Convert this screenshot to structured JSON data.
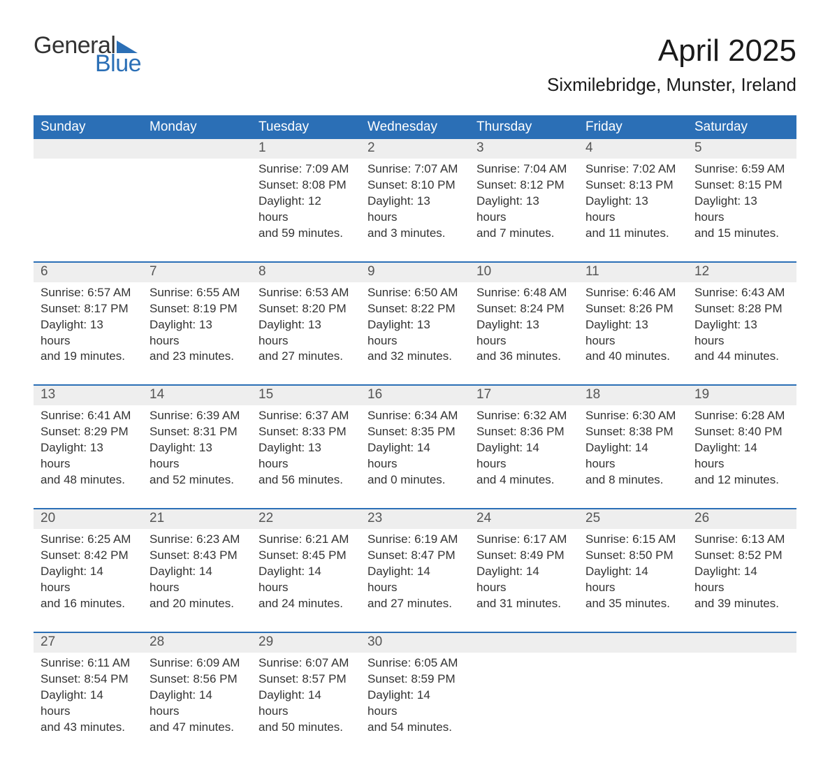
{
  "logo": {
    "text_general": "General",
    "text_blue": "Blue",
    "tri_color": "#2b6fb6"
  },
  "title": "April 2025",
  "location": "Sixmilebridge, Munster, Ireland",
  "columns": [
    "Sunday",
    "Monday",
    "Tuesday",
    "Wednesday",
    "Thursday",
    "Friday",
    "Saturday"
  ],
  "style": {
    "header_bg": "#2b6fb6",
    "header_fg": "#ffffff",
    "daynum_bg": "#eeeeee",
    "daynum_fg": "#555555",
    "body_fg": "#333333",
    "row_sep_color": "#2b6fb6",
    "page_bg": "#ffffff",
    "header_fontsize": 19,
    "daynum_fontsize": 19,
    "body_fontsize": 17,
    "title_fontsize": 44,
    "location_fontsize": 26
  },
  "weeks": [
    [
      null,
      null,
      {
        "n": "1",
        "sunrise": "7:09 AM",
        "sunset": "8:08 PM",
        "day_h": "12",
        "day_m": "59"
      },
      {
        "n": "2",
        "sunrise": "7:07 AM",
        "sunset": "8:10 PM",
        "day_h": "13",
        "day_m": "3"
      },
      {
        "n": "3",
        "sunrise": "7:04 AM",
        "sunset": "8:12 PM",
        "day_h": "13",
        "day_m": "7"
      },
      {
        "n": "4",
        "sunrise": "7:02 AM",
        "sunset": "8:13 PM",
        "day_h": "13",
        "day_m": "11"
      },
      {
        "n": "5",
        "sunrise": "6:59 AM",
        "sunset": "8:15 PM",
        "day_h": "13",
        "day_m": "15"
      }
    ],
    [
      {
        "n": "6",
        "sunrise": "6:57 AM",
        "sunset": "8:17 PM",
        "day_h": "13",
        "day_m": "19"
      },
      {
        "n": "7",
        "sunrise": "6:55 AM",
        "sunset": "8:19 PM",
        "day_h": "13",
        "day_m": "23"
      },
      {
        "n": "8",
        "sunrise": "6:53 AM",
        "sunset": "8:20 PM",
        "day_h": "13",
        "day_m": "27"
      },
      {
        "n": "9",
        "sunrise": "6:50 AM",
        "sunset": "8:22 PM",
        "day_h": "13",
        "day_m": "32"
      },
      {
        "n": "10",
        "sunrise": "6:48 AM",
        "sunset": "8:24 PM",
        "day_h": "13",
        "day_m": "36"
      },
      {
        "n": "11",
        "sunrise": "6:46 AM",
        "sunset": "8:26 PM",
        "day_h": "13",
        "day_m": "40"
      },
      {
        "n": "12",
        "sunrise": "6:43 AM",
        "sunset": "8:28 PM",
        "day_h": "13",
        "day_m": "44"
      }
    ],
    [
      {
        "n": "13",
        "sunrise": "6:41 AM",
        "sunset": "8:29 PM",
        "day_h": "13",
        "day_m": "48"
      },
      {
        "n": "14",
        "sunrise": "6:39 AM",
        "sunset": "8:31 PM",
        "day_h": "13",
        "day_m": "52"
      },
      {
        "n": "15",
        "sunrise": "6:37 AM",
        "sunset": "8:33 PM",
        "day_h": "13",
        "day_m": "56"
      },
      {
        "n": "16",
        "sunrise": "6:34 AM",
        "sunset": "8:35 PM",
        "day_h": "14",
        "day_m": "0"
      },
      {
        "n": "17",
        "sunrise": "6:32 AM",
        "sunset": "8:36 PM",
        "day_h": "14",
        "day_m": "4"
      },
      {
        "n": "18",
        "sunrise": "6:30 AM",
        "sunset": "8:38 PM",
        "day_h": "14",
        "day_m": "8"
      },
      {
        "n": "19",
        "sunrise": "6:28 AM",
        "sunset": "8:40 PM",
        "day_h": "14",
        "day_m": "12"
      }
    ],
    [
      {
        "n": "20",
        "sunrise": "6:25 AM",
        "sunset": "8:42 PM",
        "day_h": "14",
        "day_m": "16"
      },
      {
        "n": "21",
        "sunrise": "6:23 AM",
        "sunset": "8:43 PM",
        "day_h": "14",
        "day_m": "20"
      },
      {
        "n": "22",
        "sunrise": "6:21 AM",
        "sunset": "8:45 PM",
        "day_h": "14",
        "day_m": "24"
      },
      {
        "n": "23",
        "sunrise": "6:19 AM",
        "sunset": "8:47 PM",
        "day_h": "14",
        "day_m": "27"
      },
      {
        "n": "24",
        "sunrise": "6:17 AM",
        "sunset": "8:49 PM",
        "day_h": "14",
        "day_m": "31"
      },
      {
        "n": "25",
        "sunrise": "6:15 AM",
        "sunset": "8:50 PM",
        "day_h": "14",
        "day_m": "35"
      },
      {
        "n": "26",
        "sunrise": "6:13 AM",
        "sunset": "8:52 PM",
        "day_h": "14",
        "day_m": "39"
      }
    ],
    [
      {
        "n": "27",
        "sunrise": "6:11 AM",
        "sunset": "8:54 PM",
        "day_h": "14",
        "day_m": "43"
      },
      {
        "n": "28",
        "sunrise": "6:09 AM",
        "sunset": "8:56 PM",
        "day_h": "14",
        "day_m": "47"
      },
      {
        "n": "29",
        "sunrise": "6:07 AM",
        "sunset": "8:57 PM",
        "day_h": "14",
        "day_m": "50"
      },
      {
        "n": "30",
        "sunrise": "6:05 AM",
        "sunset": "8:59 PM",
        "day_h": "14",
        "day_m": "54"
      },
      null,
      null,
      null
    ]
  ],
  "labels": {
    "sunrise_prefix": "Sunrise: ",
    "sunset_prefix": "Sunset: ",
    "daylight_prefix": "Daylight: ",
    "hours_word": " hours",
    "and_word": "and ",
    "minutes_word": " minutes."
  }
}
